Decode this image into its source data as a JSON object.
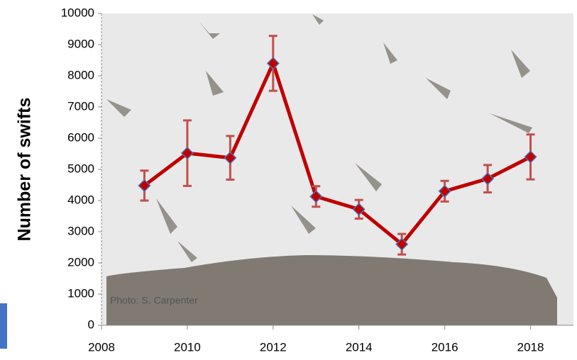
{
  "chart_data": {
    "type": "line",
    "ylabel": "Number of swifts",
    "annotation": "Photo:  S. Carpenter",
    "x": [
      2009,
      2010,
      2011,
      2012,
      2013,
      2014,
      2015,
      2016,
      2017,
      2018
    ],
    "values": [
      4480,
      5520,
      5370,
      8400,
      4130,
      3720,
      2600,
      4300,
      4700,
      5400
    ],
    "errors": [
      480,
      1050,
      700,
      880,
      330,
      300,
      330,
      330,
      440,
      720
    ],
    "color": "#c00000",
    "marker_color": "#c00000",
    "marker_edge_color": "#4f6fb5",
    "error_color": "#c0504d",
    "xlim": [
      2008,
      2019
    ],
    "xticks": [
      2008,
      2010,
      2012,
      2014,
      2016,
      2018
    ],
    "ylim": [
      0,
      10000
    ],
    "yticks": [
      0,
      1000,
      2000,
      3000,
      4000,
      5000,
      6000,
      7000,
      8000,
      9000,
      10000
    ]
  }
}
